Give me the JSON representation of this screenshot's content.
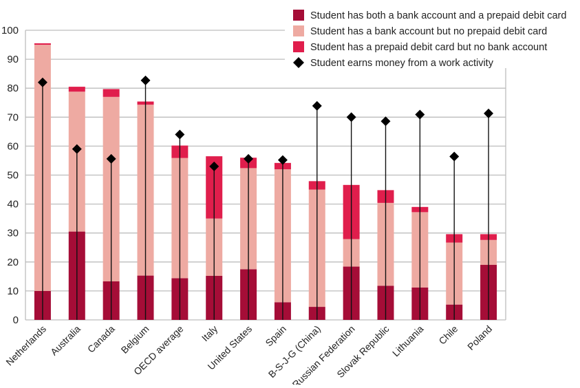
{
  "chart_data": {
    "type": "bar",
    "stacked": true,
    "ylim": [
      0,
      100
    ],
    "yticks": [
      0,
      10,
      20,
      30,
      40,
      50,
      60,
      70,
      80,
      90,
      100
    ],
    "grid": true,
    "legend_position": "top-right",
    "categories": [
      "Netherlands",
      "Australia",
      "Canada",
      "Belgium",
      "OECD average",
      "Italy",
      "United States",
      "Spain",
      "B-S-J-G (China)",
      "Russian Federation",
      "Slovak Republic",
      "Lithuania",
      "Chile",
      "Poland"
    ],
    "series": [
      {
        "name": "Student has both a bank account and a prepaid debit card",
        "type": "bar",
        "color": "#a50d37",
        "values": [
          10.0,
          30.5,
          13.3,
          15.3,
          14.4,
          15.2,
          17.5,
          6.1,
          4.5,
          18.4,
          11.8,
          11.2,
          5.3,
          19.0
        ]
      },
      {
        "name": "Student has a bank account but no prepaid debit card",
        "type": "bar",
        "color": "#eeaaa2",
        "values": [
          85.0,
          48.3,
          63.7,
          59.0,
          41.5,
          19.8,
          34.9,
          45.9,
          40.5,
          9.5,
          28.6,
          26.0,
          21.4,
          8.6
        ]
      },
      {
        "name": "Student has a prepaid debit card but no bank account",
        "type": "bar",
        "color": "#e01e4c",
        "values": [
          0.5,
          1.7,
          2.7,
          1.1,
          4.3,
          21.5,
          3.6,
          2.2,
          2.9,
          18.7,
          4.4,
          1.8,
          2.9,
          2.0
        ]
      },
      {
        "name": "Student earns money from a work activity",
        "type": "scatter",
        "marker": "diamond",
        "color": "#000000",
        "values": [
          82.0,
          59.0,
          55.6,
          82.7,
          64.0,
          53.0,
          55.6,
          55.2,
          73.9,
          70.0,
          68.6,
          70.9,
          56.4,
          71.3
        ]
      }
    ]
  }
}
